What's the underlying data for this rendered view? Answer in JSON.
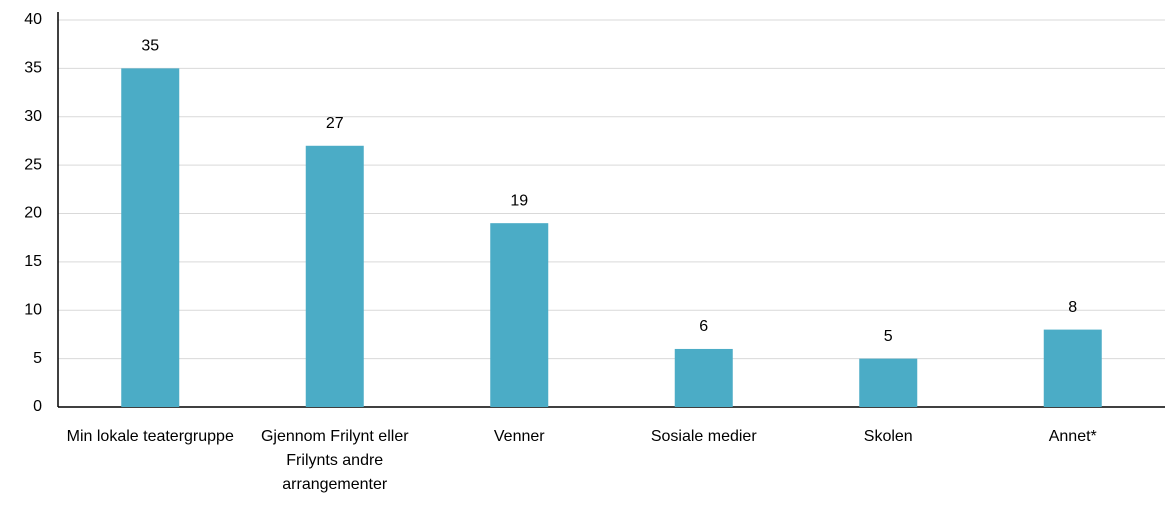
{
  "chart_data": {
    "type": "bar",
    "categories": [
      "Min lokale teatergruppe",
      "Gjennom Frilynt eller Frilynts andre arrangementer",
      "Venner",
      "Sosiale medier",
      "Skolen",
      "Annet*"
    ],
    "values": [
      35,
      27,
      19,
      6,
      5,
      8
    ],
    "color": "#4bacc6",
    "ylim": [
      0,
      40
    ],
    "yticks": [
      0,
      5,
      10,
      15,
      20,
      25,
      30,
      35,
      40
    ],
    "grid": true
  }
}
